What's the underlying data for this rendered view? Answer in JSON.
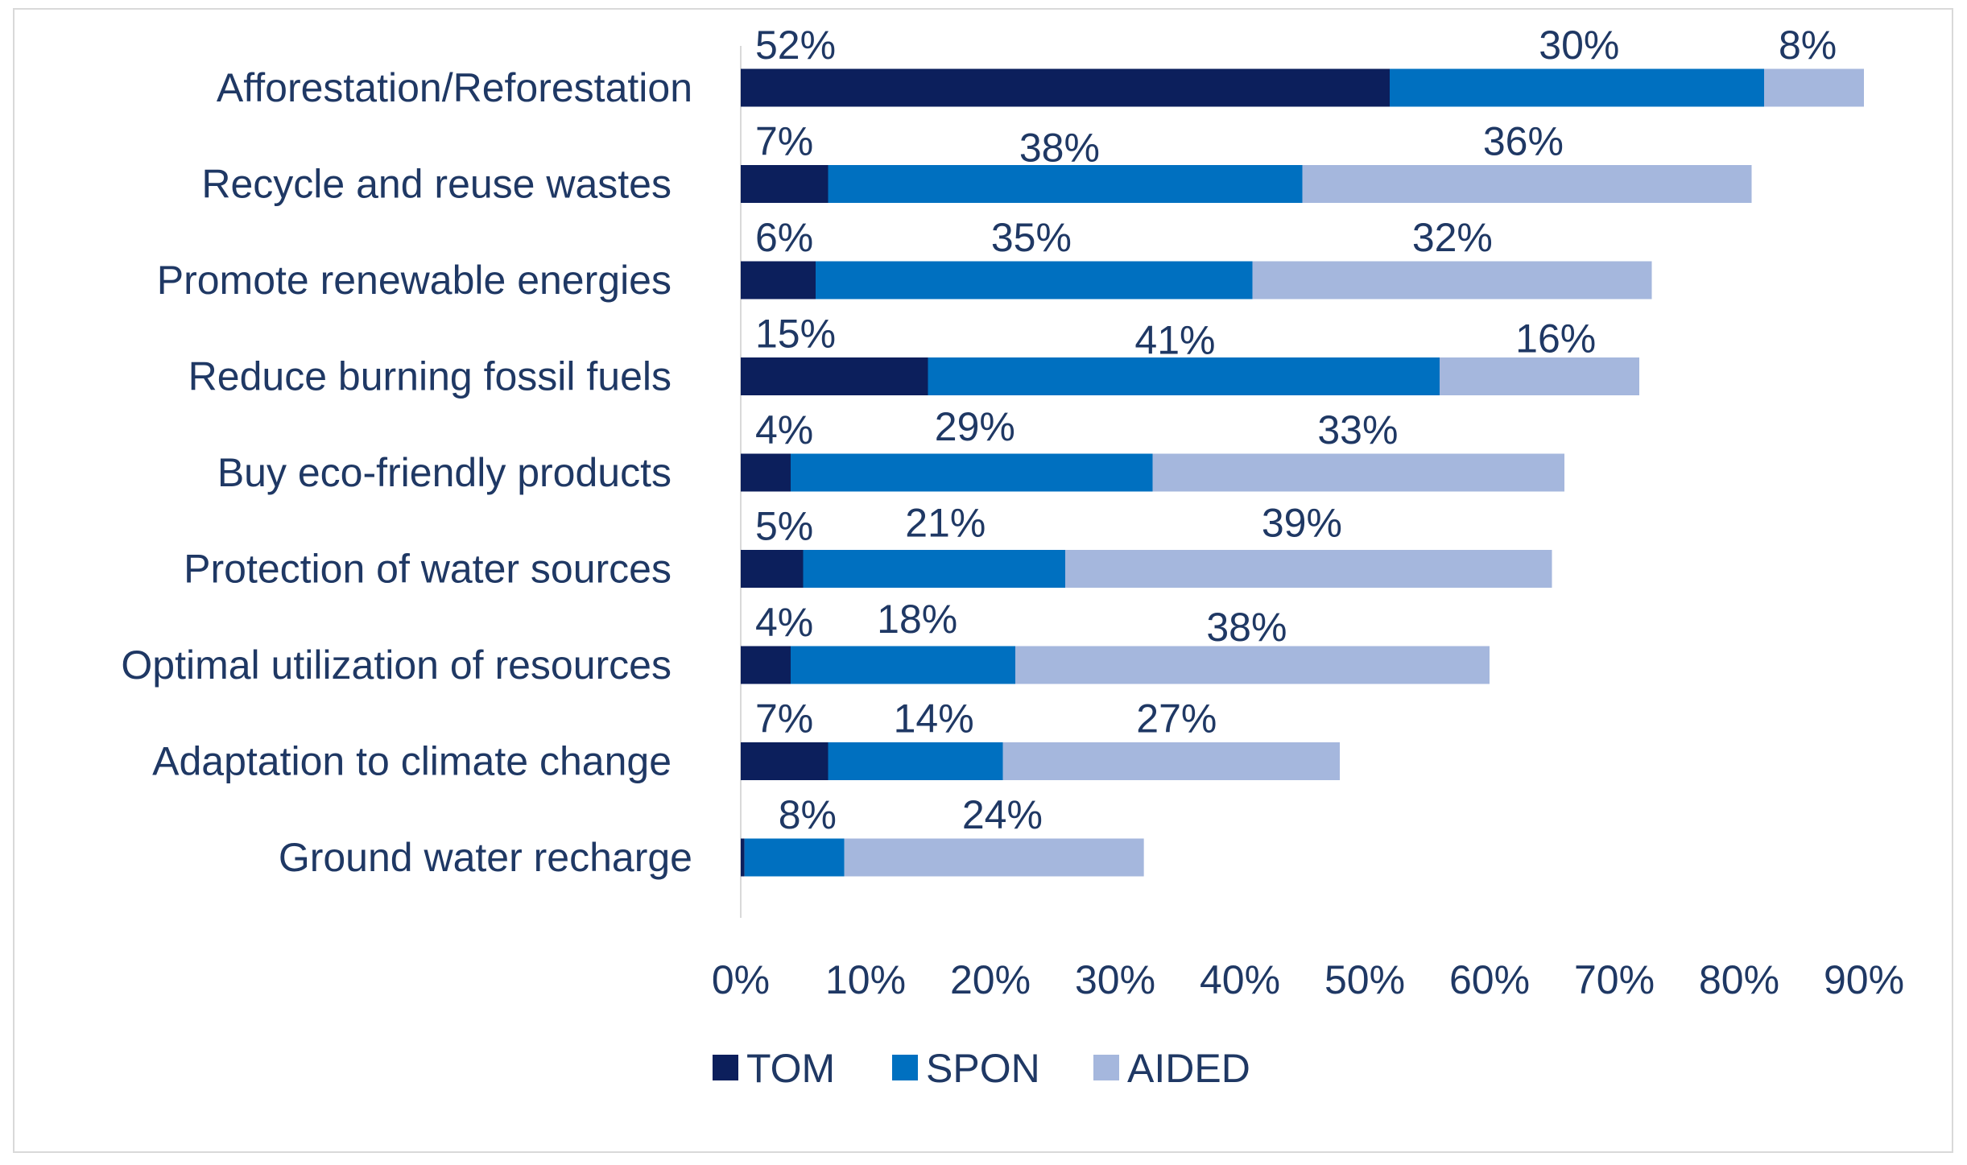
{
  "colors": {
    "TOM": "#0c1f5c",
    "SPON": "#0070c0",
    "AIDED": "#a5b7dd",
    "text": "#1f3864",
    "axis": "#d9d9d9",
    "frame": "#d9d9d9"
  },
  "chart_data": {
    "type": "bar",
    "orientation": "horizontal",
    "stacked": true,
    "title": "",
    "xlabel": "",
    "ylabel": "",
    "xlim": [
      0,
      90
    ],
    "grid": false,
    "legend_position": "bottom",
    "x_ticks": [
      "0%",
      "10%",
      "20%",
      "30%",
      "40%",
      "50%",
      "60%",
      "70%",
      "80%",
      "90%"
    ],
    "categories": [
      "Afforestation/Reforestation",
      "Recycle and reuse wastes",
      "Promote renewable energies",
      "Reduce burning fossil fuels",
      "Buy eco-friendly products",
      "Protection of water sources",
      "Optimal utilization of resources",
      "Adaptation to climate change",
      "Ground water recharge"
    ],
    "series": [
      {
        "name": "TOM",
        "values": [
          52,
          7,
          6,
          15,
          4,
          5,
          4,
          7,
          0.3
        ],
        "labels": [
          "52%",
          "7%",
          "6%",
          "15%",
          "4%",
          "5%",
          "4%",
          "7%",
          ""
        ]
      },
      {
        "name": "SPON",
        "values": [
          30,
          38,
          35,
          41,
          29,
          21,
          18,
          14,
          8
        ],
        "labels": [
          "30%",
          "38%",
          "35%",
          "41%",
          "29%",
          "21%",
          "18%",
          "14%",
          "8%"
        ]
      },
      {
        "name": "AIDED",
        "values": [
          8,
          36,
          32,
          16,
          33,
          39,
          38,
          27,
          24
        ],
        "labels": [
          "8%",
          "36%",
          "32%",
          "16%",
          "33%",
          "39%",
          "38%",
          "27%",
          "24%"
        ]
      }
    ]
  }
}
